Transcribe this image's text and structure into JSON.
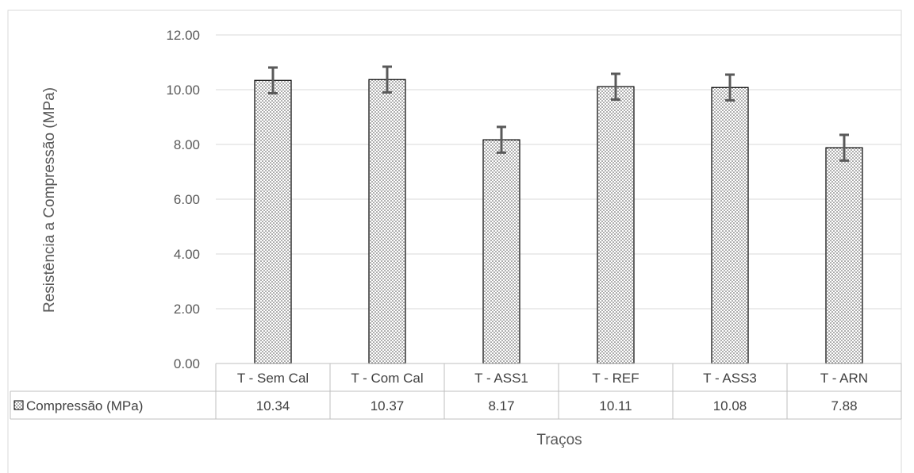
{
  "chart_data": {
    "type": "bar",
    "categories": [
      "T - Sem Cal",
      "T - Com Cal",
      "T - ASS1",
      "T - REF",
      "T - ASS3",
      "T - ARN"
    ],
    "series": [
      {
        "name": "Compressão (MPa)",
        "values": [
          10.34,
          10.37,
          8.17,
          10.11,
          10.08,
          7.88
        ],
        "value_labels": [
          "10.34",
          "10.37",
          "8.17",
          "10.11",
          "10.08",
          "7.88"
        ],
        "error": [
          0.47,
          0.47,
          0.47,
          0.47,
          0.47,
          0.47
        ]
      }
    ],
    "ylabel": "Resistência a Compressão (MPa)",
    "xlabel": "Traços",
    "ylim": [
      0,
      12
    ],
    "yticks": [
      "0.00",
      "2.00",
      "4.00",
      "6.00",
      "8.00",
      "10.00",
      "12.00"
    ],
    "grid": true,
    "legend": "data-table",
    "colors": {
      "bar_fill": "#ffffff",
      "bar_dots": "#404040",
      "bar_stroke": "#000000",
      "error_bar": "#595959",
      "grid": "#d9d9d9"
    }
  }
}
